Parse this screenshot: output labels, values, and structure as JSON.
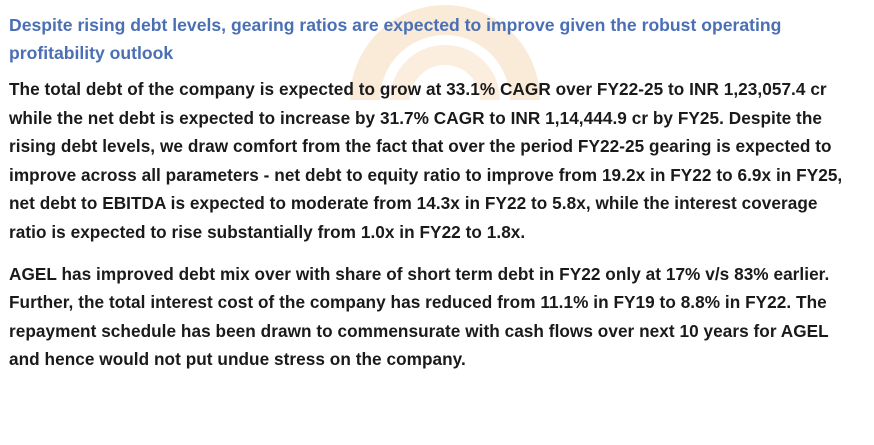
{
  "heading": "Despite rising debt levels, gearing ratios are expected to improve given the robust operating profitability outlook",
  "paragraphs": [
    "The total debt of the company is expected to grow at 33.1% CAGR over FY22-25 to INR 1,23,057.4 cr while the net debt is expected to increase by 31.7% CAGR to INR 1,14,444.9 cr by FY25. Despite the rising debt levels, we draw comfort from the fact that over the period FY22-25 gearing is expected to improve across all parameters - net debt to equity ratio to improve from 19.2x in FY22 to 6.9x in FY25, net debt to EBITDA is expected to moderate from 14.3x in FY22 to 5.8x, while the interest coverage ratio is expected to rise substantially from 1.0x in FY22 to 1.8x.",
    "AGEL has improved debt mix over with share of short term debt in FY22 only at 17% v/s 83% earlier. Further, the total interest cost of the company has reduced from 11.1% in FY19 to 8.8% in FY22. The repayment schedule has been drawn to commensurate with cash flows over next 10 years for AGEL and hence would not put undue stress on the company."
  ],
  "colors": {
    "heading": "#4a6fb5",
    "body_text": "#1a1a1a",
    "watermark": "#f6d9b8"
  }
}
